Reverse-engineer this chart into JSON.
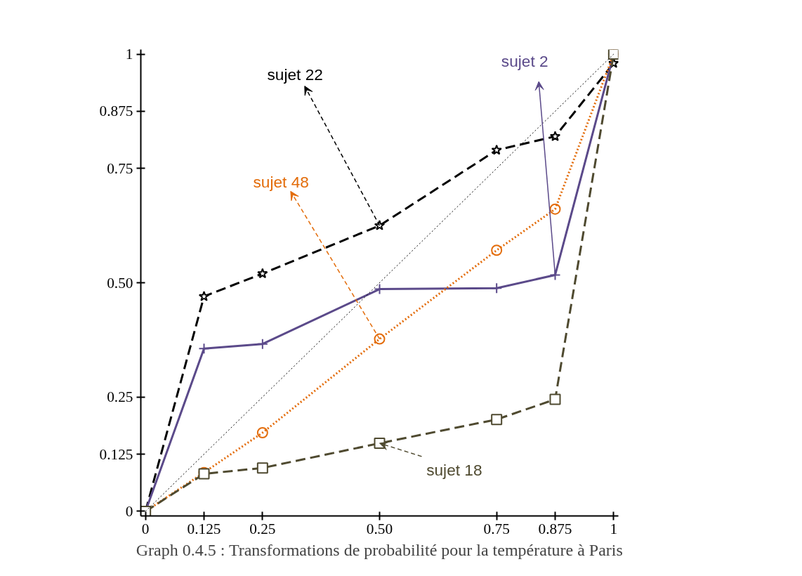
{
  "chart_data": {
    "type": "line",
    "annotations": [
      "Graph 0.4.5 : Transformations de probabilité pour la température à Paris"
    ],
    "x": [
      0,
      0.125,
      0.25,
      0.5,
      0.75,
      0.875,
      1
    ],
    "xlim": [
      -0.01,
      1.01
    ],
    "ylim": [
      -0.01,
      1.01
    ],
    "xticks": [
      0,
      0.125,
      0.25,
      {
        "value": 0.5,
        "label": "0.50"
      },
      0.75,
      0.875,
      1
    ],
    "yticks": [
      0,
      0.125,
      0.25,
      {
        "value": 0.5,
        "label": "0.50"
      },
      0.75,
      0.875,
      1
    ],
    "grid": false,
    "series": [
      {
        "name": "sujet 22",
        "color": "#000000",
        "marker": "star",
        "line_style": "dashed",
        "values": [
          0,
          0.47,
          0.52,
          0.625,
          0.79,
          0.82,
          0.98
        ]
      },
      {
        "name": "sujet 2",
        "color": "#5b4a8a",
        "marker": "cross",
        "line_style": "solid",
        "values": [
          0,
          0.356,
          0.366,
          0.486,
          0.488,
          0.517,
          1
        ]
      },
      {
        "name": "sujet 48",
        "color": "#e36c0a",
        "marker": "circle",
        "line_style": "dotted",
        "values": [
          0,
          0.085,
          0.172,
          0.377,
          0.571,
          0.661,
          1
        ]
      },
      {
        "name": "sujet 18",
        "color": "#4f4a30",
        "marker": "square",
        "line_style": "dashed",
        "values": [
          0,
          0.082,
          0.095,
          0.149,
          0.201,
          0.245,
          1
        ]
      },
      {
        "color": "#000000",
        "marker": "none",
        "line_style": "dotted",
        "x": [
          0,
          1
        ],
        "values": [
          0,
          1
        ]
      }
    ]
  }
}
